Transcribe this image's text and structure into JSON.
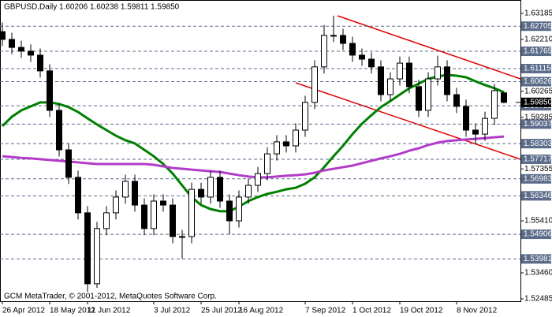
{
  "chart_data": {
    "type": "candlestick",
    "header": "GBPUSD,Daily  1.60206 1.60238 1.59811 1.59850",
    "footer": "GCM MetaTrader, © 2001-2012, MetaQuotes Software Corp.",
    "categories": [
      "26 Apr 2012",
      null,
      null,
      null,
      null,
      "18 May 2012",
      null,
      null,
      null,
      "11 Jun 2012",
      null,
      null,
      null,
      null,
      null,
      null,
      "3 Jul 2012",
      null,
      null,
      null,
      null,
      "25 Jul 2012",
      null,
      null,
      null,
      "16 Aug 2012",
      null,
      null,
      null,
      null,
      null,
      null,
      "7 Sep 2012",
      null,
      null,
      null,
      null,
      "1 Oct 2012",
      null,
      null,
      null,
      null,
      "19 Oct 2012",
      null,
      null,
      null,
      null,
      null,
      "8 Nov 2012",
      null,
      null,
      null,
      null,
      null
    ],
    "open": [
      1.625,
      1.6221,
      1.6191,
      1.6177,
      1.6162,
      1.6103,
      1.5955,
      1.5807,
      1.5704,
      1.5571,
      1.5305,
      1.5512,
      1.5571,
      1.563,
      1.5689,
      1.56,
      1.5512,
      1.5615,
      1.56,
      1.5482,
      1.5482,
      1.5659,
      1.563,
      1.5704,
      1.5615,
      1.5541,
      1.563,
      1.5674,
      1.5718,
      1.5792,
      1.5837,
      1.5822,
      1.5881,
      1.5985,
      1.6118,
      1.6236,
      1.6236,
      1.6206,
      1.6162,
      1.6147,
      1.6118,
      1.6014,
      1.6073,
      1.6132,
      1.6044,
      1.5955,
      1.6073,
      1.6118,
      1.6014,
      1.597,
      1.5881,
      1.5866,
      1.5925,
      1.60206
    ],
    "high": [
      1.6285,
      1.6246,
      1.6216,
      1.6202,
      1.6187,
      1.6128,
      1.598,
      1.5832,
      1.5729,
      1.5596,
      1.5537,
      1.5596,
      1.5655,
      1.5714,
      1.5714,
      1.5625,
      1.564,
      1.564,
      1.5625,
      1.5507,
      1.5684,
      1.5684,
      1.5729,
      1.5729,
      1.564,
      1.5655,
      1.5699,
      1.5743,
      1.5817,
      1.5862,
      1.5862,
      1.5906,
      1.601,
      1.6143,
      1.6275,
      1.631,
      1.6261,
      1.6231,
      1.6187,
      1.6172,
      1.6143,
      1.6098,
      1.6157,
      1.6157,
      1.6069,
      1.6098,
      1.616,
      1.6143,
      1.6039,
      1.5995,
      1.5906,
      1.595,
      1.6054,
      1.60238
    ],
    "low": [
      1.6196,
      1.6166,
      1.6152,
      1.6137,
      1.6078,
      1.593,
      1.5782,
      1.5679,
      1.5546,
      1.5275,
      1.529,
      1.5487,
      1.5546,
      1.5605,
      1.5575,
      1.5487,
      1.5487,
      1.5575,
      1.5457,
      1.54,
      1.5457,
      1.5605,
      1.5605,
      1.559,
      1.549,
      1.5516,
      1.5605,
      1.5649,
      1.5693,
      1.5767,
      1.5797,
      1.5797,
      1.5856,
      1.596,
      1.6093,
      1.6211,
      1.6181,
      1.6137,
      1.6122,
      1.6093,
      1.5989,
      1.5989,
      1.6048,
      1.6019,
      1.593,
      1.593,
      1.6048,
      1.5989,
      1.5945,
      1.5856,
      1.583,
      1.5841,
      1.59,
      1.59811
    ],
    "close": [
      1.6221,
      1.6191,
      1.6177,
      1.6162,
      1.6103,
      1.5955,
      1.5807,
      1.5704,
      1.5571,
      1.5305,
      1.5512,
      1.5571,
      1.563,
      1.5689,
      1.56,
      1.5512,
      1.5615,
      1.56,
      1.5482,
      1.5482,
      1.5659,
      1.563,
      1.5704,
      1.5615,
      1.5541,
      1.563,
      1.5674,
      1.5718,
      1.5792,
      1.5837,
      1.5822,
      1.5881,
      1.5985,
      1.6118,
      1.6236,
      1.6236,
      1.6206,
      1.6162,
      1.6147,
      1.6118,
      1.6014,
      1.6073,
      1.6132,
      1.6044,
      1.5955,
      1.6073,
      1.6118,
      1.6014,
      1.597,
      1.5881,
      1.5866,
      1.5925,
      1.6029,
      1.5985
    ],
    "lines": [
      {
        "color": "#008000",
        "values": [
          1.5896,
          1.5931,
          1.5955,
          1.597,
          1.5985,
          1.5985,
          1.5979,
          1.5967,
          1.5949,
          1.5925,
          1.5902,
          1.5881,
          1.586,
          1.5843,
          1.5831,
          1.5807,
          1.5783,
          1.5754,
          1.5718,
          1.5674,
          1.563,
          1.56,
          1.5585,
          1.5577,
          1.5577,
          1.5594,
          1.5615,
          1.563,
          1.5642,
          1.565,
          1.5659,
          1.5665,
          1.568,
          1.5704,
          1.5742,
          1.5783,
          1.5822,
          1.5866,
          1.5905,
          1.5937,
          1.5967,
          1.599,
          1.6014,
          1.6038,
          1.6055,
          1.6073,
          1.6082,
          1.6088,
          1.6085,
          1.6079,
          1.6064,
          1.605,
          1.6038,
          1.6023
        ]
      },
      {
        "color": "#b23cc8",
        "values": [
          1.5783,
          1.578,
          1.5777,
          1.5775,
          1.5772,
          1.5769,
          1.5766,
          1.5763,
          1.576,
          1.5757,
          1.5754,
          1.5754,
          1.5754,
          1.5754,
          1.5754,
          1.5754,
          1.5751,
          1.5745,
          1.5739,
          1.5736,
          1.5733,
          1.573,
          1.5727,
          1.5724,
          1.5718,
          1.5712,
          1.5707,
          1.5704,
          1.5704,
          1.5707,
          1.571,
          1.5712,
          1.5715,
          1.5721,
          1.573,
          1.5736,
          1.5742,
          1.5748,
          1.5757,
          1.5766,
          1.5775,
          1.5783,
          1.5792,
          1.5804,
          1.5813,
          1.5825,
          1.5834,
          1.584,
          1.5843,
          1.5846,
          1.5848,
          1.5851,
          1.5854,
          1.5857
        ]
      }
    ],
    "ylim": [
      1.52396,
      1.63687
    ],
    "yticks": [
      1.63185,
      {
        "value": 1.6221,
        "label": "1.62210"
      },
      1.60265,
      1.59285,
      1.57355,
      {
        "value": 1.5541,
        "label": "1.55410"
      },
      {
        "value": 1.5346,
        "label": "1.53460"
      },
      1.52485
    ],
    "levels": [
      1.62705,
      1.61765,
      1.61115,
      1.60626,
      1.59722,
      1.59037,
      1.58303,
      1.57717,
      1.56983,
      1.56346,
      1.54906,
      1.53981
    ],
    "current_price": {
      "value": 1.5985,
      "label": "1.59850"
    },
    "up_color": "#ffffff",
    "down_color": "#000000",
    "level_color": "#5b6b8a"
  }
}
